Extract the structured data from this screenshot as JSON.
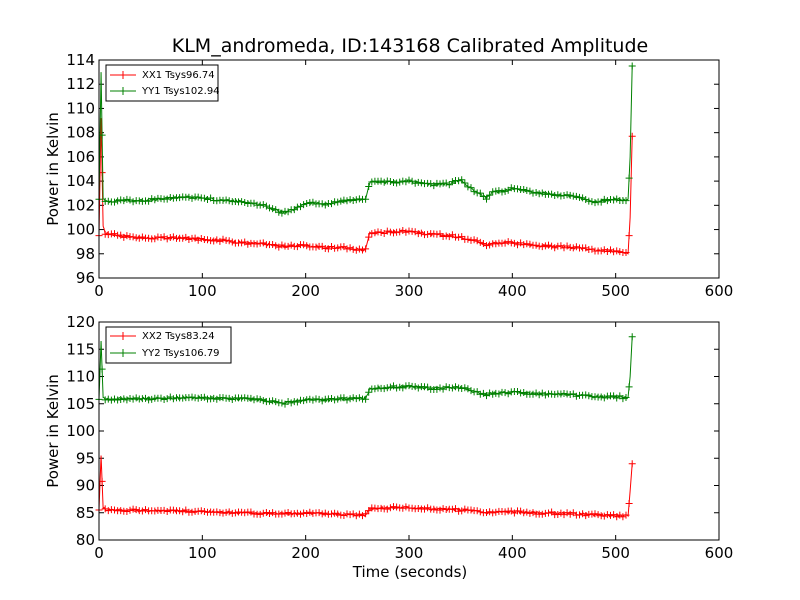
{
  "chart_data": [
    {
      "type": "line",
      "title": "KLM_andromeda, ID:143168 Calibrated Amplitude",
      "xlabel": "",
      "ylabel": "Power in Kelvin",
      "xlim": [
        0,
        600
      ],
      "ylim": [
        96,
        114
      ],
      "xticks": [
        0,
        100,
        200,
        300,
        400,
        500,
        600
      ],
      "yticks": [
        96,
        98,
        100,
        102,
        104,
        106,
        108,
        110,
        112,
        114
      ],
      "legend_position": "top-left",
      "series": [
        {
          "name": "XX1 Tsys96.74",
          "color": "#ff0000",
          "x": [
            0,
            2,
            4,
            6,
            20,
            40,
            60,
            80,
            100,
            120,
            140,
            160,
            180,
            200,
            220,
            240,
            255,
            258,
            262,
            280,
            300,
            320,
            340,
            360,
            375,
            380,
            400,
            420,
            440,
            460,
            480,
            500,
            510,
            512,
            514,
            516
          ],
          "y": [
            99.5,
            109.2,
            100.2,
            99.7,
            99.5,
            99.3,
            99.3,
            99.3,
            99.2,
            99.1,
            98.9,
            98.8,
            98.6,
            98.7,
            98.5,
            98.5,
            98.3,
            98.4,
            99.7,
            99.8,
            99.9,
            99.6,
            99.5,
            99.2,
            98.7,
            98.9,
            98.9,
            98.7,
            98.6,
            98.5,
            98.3,
            98.2,
            98.0,
            98.0,
            101.0,
            107.7
          ]
        },
        {
          "name": "YY1 Tsys102.94",
          "color": "#008000",
          "x": [
            0,
            2,
            4,
            6,
            20,
            40,
            60,
            80,
            100,
            120,
            140,
            160,
            170,
            180,
            190,
            200,
            220,
            240,
            255,
            258,
            262,
            280,
            300,
            320,
            340,
            350,
            360,
            375,
            380,
            400,
            420,
            440,
            460,
            480,
            500,
            510,
            512,
            514,
            516
          ],
          "y": [
            102.5,
            113.0,
            102.6,
            102.3,
            102.4,
            102.4,
            102.5,
            102.7,
            102.6,
            102.4,
            102.3,
            102.0,
            101.6,
            101.4,
            101.7,
            102.2,
            102.1,
            102.4,
            102.5,
            102.5,
            103.9,
            103.9,
            104.0,
            103.7,
            103.8,
            104.1,
            103.4,
            102.6,
            103.0,
            103.4,
            103.1,
            102.9,
            102.7,
            102.3,
            102.5,
            102.4,
            102.5,
            106.0,
            113.5
          ]
        }
      ]
    },
    {
      "type": "line",
      "title": "",
      "xlabel": "Time (seconds)",
      "ylabel": "Power in Kelvin",
      "xlim": [
        0,
        600
      ],
      "ylim": [
        80,
        120
      ],
      "xticks": [
        0,
        100,
        200,
        300,
        400,
        500,
        600
      ],
      "yticks": [
        80,
        85,
        90,
        95,
        100,
        105,
        110,
        115,
        120
      ],
      "legend_position": "top-left",
      "series": [
        {
          "name": "XX2 Tsys83.24",
          "color": "#ff0000",
          "x": [
            0,
            2,
            4,
            6,
            20,
            40,
            60,
            80,
            100,
            120,
            140,
            160,
            180,
            200,
            220,
            240,
            255,
            258,
            262,
            280,
            300,
            320,
            340,
            360,
            375,
            380,
            400,
            420,
            440,
            460,
            480,
            500,
            510,
            512,
            514,
            516
          ],
          "y": [
            85.5,
            95.5,
            86.0,
            85.6,
            85.5,
            85.4,
            85.4,
            85.3,
            85.2,
            85.1,
            85.0,
            84.9,
            84.8,
            84.9,
            84.8,
            84.7,
            84.6,
            84.6,
            85.8,
            85.9,
            86.0,
            85.7,
            85.6,
            85.4,
            85.0,
            85.1,
            85.2,
            85.0,
            84.9,
            84.8,
            84.6,
            84.5,
            84.4,
            84.4,
            89.0,
            94.0
          ]
        },
        {
          "name": "YY2 Tsys106.79",
          "color": "#008000",
          "x": [
            0,
            2,
            4,
            6,
            20,
            40,
            60,
            80,
            100,
            120,
            140,
            160,
            170,
            180,
            190,
            200,
            220,
            240,
            255,
            258,
            262,
            280,
            300,
            320,
            340,
            350,
            360,
            375,
            380,
            400,
            420,
            440,
            460,
            480,
            500,
            510,
            512,
            514,
            516
          ],
          "y": [
            105.8,
            116.5,
            106.2,
            105.8,
            105.9,
            105.9,
            106.0,
            106.1,
            106.1,
            106.0,
            105.9,
            105.7,
            105.3,
            105.1,
            105.4,
            105.8,
            105.7,
            105.9,
            106.0,
            106.0,
            107.8,
            108.0,
            108.2,
            107.8,
            107.9,
            108.0,
            107.3,
            106.6,
            106.9,
            107.1,
            106.9,
            106.8,
            106.6,
            106.3,
            106.3,
            106.1,
            106.2,
            110.0,
            117.3
          ]
        }
      ]
    }
  ]
}
